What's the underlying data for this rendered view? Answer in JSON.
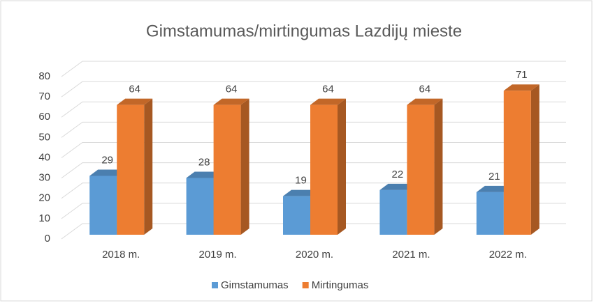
{
  "chart_data": {
    "type": "bar3d",
    "title": "Gimstamumas/mirtingumas Lazdijų mieste",
    "categories": [
      "2018 m.",
      "2019 m.",
      "2020 m.",
      "2021 m.",
      "2022 m."
    ],
    "series": [
      {
        "name": "Gimstamumas",
        "color": "#5b9bd5",
        "values": [
          29,
          28,
          19,
          22,
          21
        ]
      },
      {
        "name": "Mirtingumas",
        "color": "#ed7d31",
        "values": [
          64,
          64,
          64,
          64,
          71
        ]
      }
    ],
    "ylim": [
      0,
      80
    ],
    "yticks": [
      0,
      10,
      20,
      30,
      40,
      50,
      60,
      70,
      80
    ],
    "grid": true,
    "legend": "bottom"
  }
}
